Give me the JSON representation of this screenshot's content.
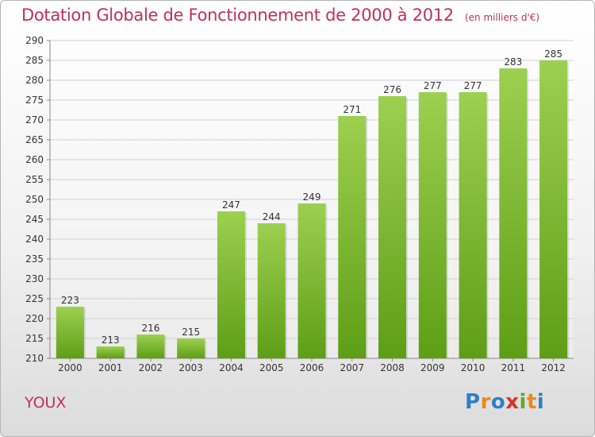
{
  "header": {
    "title": "Dotation Globale de Fonctionnement de 2000 à 2012",
    "unit": "(en milliers d'€)"
  },
  "footer": {
    "commune": "YOUX",
    "logo_text": "Proxiti"
  },
  "colors": {
    "title": "#c0305a",
    "bar_light": "#9dd050",
    "bar_dark": "#5e9e16",
    "logo_letters": [
      "#2f7fc6",
      "#e88a1a",
      "#2f7fc6",
      "#d8312e",
      "#66a82a",
      "#e88a1a",
      "#2f7fc6"
    ]
  },
  "chart_data": {
    "type": "bar",
    "title": "Dotation Globale de Fonctionnement de 2000 à 2012",
    "subtitle": "(en milliers d'€)",
    "categories": [
      "2000",
      "2001",
      "2002",
      "2003",
      "2004",
      "2005",
      "2006",
      "2007",
      "2008",
      "2009",
      "2010",
      "2011",
      "2012"
    ],
    "values": [
      223,
      213,
      216,
      215,
      247,
      244,
      249,
      271,
      276,
      277,
      277,
      283,
      285
    ],
    "ylim": [
      210,
      290
    ],
    "yticks": [
      210,
      215,
      220,
      225,
      230,
      235,
      240,
      245,
      250,
      255,
      260,
      265,
      270,
      275,
      280,
      285,
      290
    ],
    "grid": true,
    "xlabel": "",
    "ylabel": ""
  }
}
